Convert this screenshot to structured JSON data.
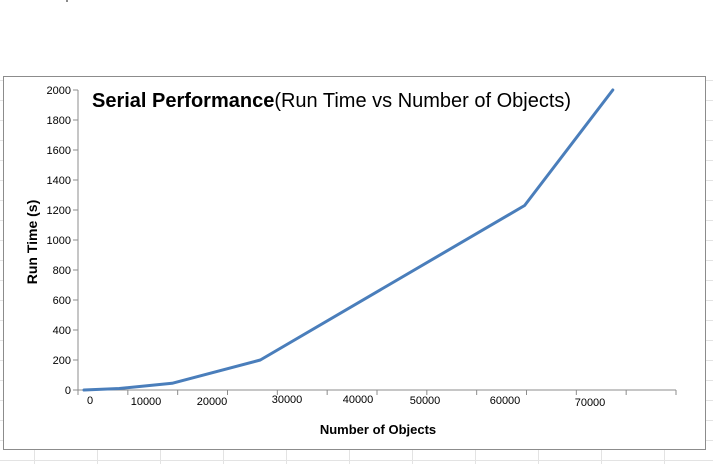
{
  "chart_data": {
    "type": "line",
    "title": "Serial Performance",
    "subtitle": "(Run Time vs Number of Objects)",
    "xlabel": "Number of Objects",
    "ylabel": "Run Time (s)",
    "x_tick_labels": [
      "0",
      "10000",
      "20000",
      "30000",
      "40000",
      "50000",
      "60000",
      "70000"
    ],
    "y_tick_labels": [
      "0",
      "200",
      "400",
      "600",
      "800",
      "1000",
      "1200",
      "1400",
      "1600",
      "1800",
      "2000"
    ],
    "ylim": [
      0,
      2000
    ],
    "grid": false,
    "legend": "none",
    "series": [
      {
        "x": [
          0,
          5000,
          12500,
          25000,
          62500,
          75000
        ],
        "y": [
          0,
          10,
          45,
          200,
          1230,
          2000
        ],
        "color": "#4a7ebb"
      }
    ]
  }
}
